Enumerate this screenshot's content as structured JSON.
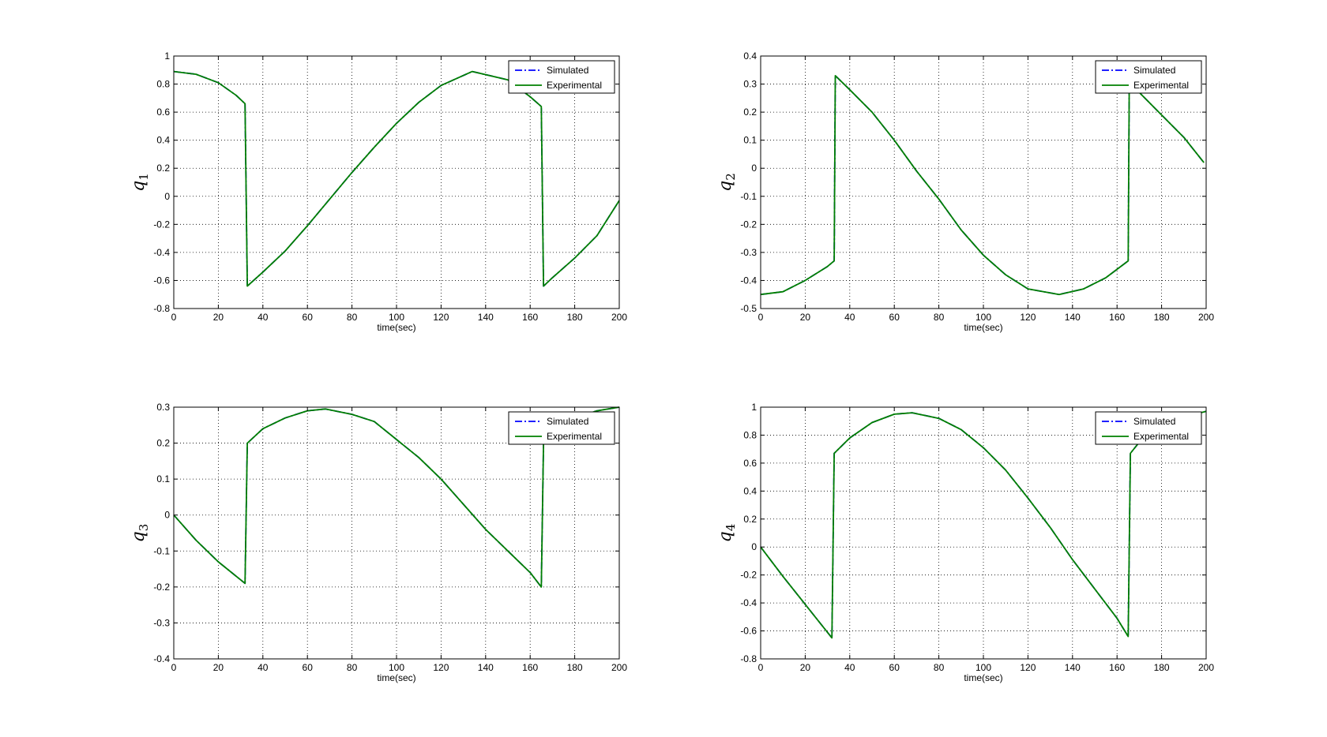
{
  "chart_data": [
    {
      "type": "line",
      "ylabel": "q",
      "ylabel_sub": "1",
      "xlabel": "time(sec)",
      "xlim": [
        0,
        200
      ],
      "ylim": [
        -0.8,
        1.0
      ],
      "xticks": [
        0,
        20,
        40,
        60,
        80,
        100,
        120,
        140,
        160,
        180,
        200
      ],
      "yticks": [
        -0.8,
        -0.6,
        -0.4,
        -0.2,
        0,
        0.2,
        0.4,
        0.6,
        0.8,
        1
      ],
      "ytick_labels": [
        "-0.8",
        "-0.6",
        "-0.4",
        "-0.2",
        "0",
        "0.2",
        "0.4",
        "0.6",
        "0.8",
        "1"
      ],
      "grid": true,
      "legend": "top-right",
      "series": [
        {
          "name": "Simulated",
          "color": "#0000ff",
          "style": "dashdot",
          "x": [
            0,
            10,
            20,
            28,
            32,
            33,
            40,
            50,
            60,
            70,
            80,
            90,
            100,
            110,
            120,
            134,
            150,
            160,
            165,
            166,
            170,
            180,
            190,
            200
          ],
          "y": [
            0.89,
            0.87,
            0.81,
            0.72,
            0.66,
            -0.64,
            -0.54,
            -0.39,
            -0.21,
            -0.02,
            0.17,
            0.35,
            0.52,
            0.67,
            0.79,
            0.89,
            0.83,
            0.71,
            0.64,
            -0.64,
            -0.58,
            -0.44,
            -0.28,
            -0.03
          ]
        },
        {
          "name": "Experimental",
          "color": "#008000",
          "style": "solid",
          "x": [
            0,
            10,
            20,
            28,
            32,
            33,
            40,
            50,
            60,
            70,
            80,
            90,
            100,
            110,
            120,
            134,
            150,
            160,
            165,
            166,
            170,
            180,
            190,
            200
          ],
          "y": [
            0.89,
            0.87,
            0.81,
            0.72,
            0.66,
            -0.64,
            -0.54,
            -0.39,
            -0.21,
            -0.02,
            0.17,
            0.35,
            0.52,
            0.67,
            0.79,
            0.89,
            0.83,
            0.71,
            0.64,
            -0.64,
            -0.58,
            -0.44,
            -0.28,
            -0.03
          ]
        }
      ]
    },
    {
      "type": "line",
      "ylabel": "q",
      "ylabel_sub": "2",
      "xlabel": "time(sec)",
      "xlim": [
        0,
        200
      ],
      "ylim": [
        -0.5,
        0.4
      ],
      "xticks": [
        0,
        20,
        40,
        60,
        80,
        100,
        120,
        140,
        160,
        180,
        200
      ],
      "yticks": [
        -0.5,
        -0.4,
        -0.3,
        -0.2,
        -0.1,
        0,
        0.1,
        0.2,
        0.3,
        0.4
      ],
      "ytick_labels": [
        "-0.5",
        "-0.4",
        "-0.3",
        "-0.2",
        "-0.1",
        "0",
        "0.1",
        "0.2",
        "0.3",
        "0.4"
      ],
      "grid": true,
      "legend": "top-right",
      "series": [
        {
          "name": "Simulated",
          "color": "#0000ff",
          "style": "dashdot",
          "x": [
            0,
            10,
            20,
            30,
            33,
            33.5,
            40,
            50,
            60,
            70,
            80,
            90,
            100,
            110,
            120,
            134,
            145,
            155,
            165,
            165.5,
            170,
            180,
            190,
            199
          ],
          "y": [
            -0.45,
            -0.44,
            -0.4,
            -0.35,
            -0.33,
            0.33,
            0.28,
            0.2,
            0.1,
            -0.01,
            -0.11,
            -0.22,
            -0.31,
            -0.38,
            -0.43,
            -0.45,
            -0.43,
            -0.39,
            -0.33,
            0.32,
            0.27,
            0.19,
            0.11,
            0.02
          ]
        },
        {
          "name": "Experimental",
          "color": "#008000",
          "style": "solid",
          "x": [
            0,
            10,
            20,
            30,
            33,
            33.5,
            40,
            50,
            60,
            70,
            80,
            90,
            100,
            110,
            120,
            134,
            145,
            155,
            165,
            165.5,
            170,
            180,
            190,
            199
          ],
          "y": [
            -0.45,
            -0.44,
            -0.4,
            -0.35,
            -0.33,
            0.33,
            0.28,
            0.2,
            0.1,
            -0.01,
            -0.11,
            -0.22,
            -0.31,
            -0.38,
            -0.43,
            -0.45,
            -0.43,
            -0.39,
            -0.33,
            0.32,
            0.27,
            0.19,
            0.11,
            0.02
          ]
        }
      ]
    },
    {
      "type": "line",
      "ylabel": "q",
      "ylabel_sub": "3",
      "xlabel": "time(sec)",
      "xlim": [
        0,
        200
      ],
      "ylim": [
        -0.4,
        0.3
      ],
      "xticks": [
        0,
        20,
        40,
        60,
        80,
        100,
        120,
        140,
        160,
        180,
        200
      ],
      "yticks": [
        -0.4,
        -0.3,
        -0.2,
        -0.1,
        0,
        0.1,
        0.2,
        0.3
      ],
      "ytick_labels": [
        "-0.4",
        "-0.3",
        "-0.2",
        "-0.1",
        "0",
        "0.1",
        "0.2",
        "0.3"
      ],
      "grid": true,
      "legend": "top-right",
      "series": [
        {
          "name": "Simulated",
          "color": "#0000ff",
          "style": "dashdot",
          "x": [
            0,
            10,
            20,
            32,
            33,
            40,
            50,
            60,
            68,
            80,
            90,
            100,
            110,
            120,
            130,
            140,
            150,
            160,
            165,
            166,
            170,
            180,
            190,
            200
          ],
          "y": [
            0,
            -0.07,
            -0.13,
            -0.19,
            0.2,
            0.24,
            0.27,
            0.29,
            0.295,
            0.28,
            0.26,
            0.21,
            0.16,
            0.1,
            0.03,
            -0.04,
            -0.1,
            -0.16,
            -0.2,
            0.2,
            0.24,
            0.27,
            0.29,
            0.3
          ]
        },
        {
          "name": "Experimental",
          "color": "#008000",
          "style": "solid",
          "x": [
            0,
            10,
            20,
            32,
            33,
            40,
            50,
            60,
            68,
            80,
            90,
            100,
            110,
            120,
            130,
            140,
            150,
            160,
            165,
            166,
            170,
            180,
            190,
            200
          ],
          "y": [
            0,
            -0.07,
            -0.13,
            -0.19,
            0.2,
            0.24,
            0.27,
            0.29,
            0.295,
            0.28,
            0.26,
            0.21,
            0.16,
            0.1,
            0.03,
            -0.04,
            -0.1,
            -0.16,
            -0.2,
            0.2,
            0.24,
            0.27,
            0.29,
            0.3
          ]
        }
      ]
    },
    {
      "type": "line",
      "ylabel": "q",
      "ylabel_sub": "4",
      "xlabel": "time(sec)",
      "xlim": [
        0,
        200
      ],
      "ylim": [
        -0.8,
        1.0
      ],
      "xticks": [
        0,
        20,
        40,
        60,
        80,
        100,
        120,
        140,
        160,
        180,
        200
      ],
      "yticks": [
        -0.8,
        -0.6,
        -0.4,
        -0.2,
        0,
        0.2,
        0.4,
        0.6,
        0.8,
        1
      ],
      "ytick_labels": [
        "-0.8",
        "-0.6",
        "-0.4",
        "-0.2",
        "0",
        "0.2",
        "0.4",
        "0.6",
        "0.8",
        "1"
      ],
      "grid": true,
      "legend": "top-right",
      "series": [
        {
          "name": "Simulated",
          "color": "#0000ff",
          "style": "dashdot",
          "x": [
            0,
            10,
            20,
            32,
            33,
            40,
            50,
            60,
            68,
            80,
            90,
            100,
            110,
            120,
            130,
            140,
            150,
            160,
            165,
            166,
            170,
            180,
            190,
            200
          ],
          "y": [
            0,
            -0.21,
            -0.41,
            -0.65,
            0.67,
            0.78,
            0.89,
            0.95,
            0.96,
            0.92,
            0.84,
            0.71,
            0.55,
            0.35,
            0.14,
            -0.09,
            -0.3,
            -0.51,
            -0.64,
            0.67,
            0.75,
            0.86,
            0.93,
            0.97
          ]
        },
        {
          "name": "Experimental",
          "color": "#008000",
          "style": "solid",
          "x": [
            0,
            10,
            20,
            32,
            33,
            40,
            50,
            60,
            68,
            80,
            90,
            100,
            110,
            120,
            130,
            140,
            150,
            160,
            165,
            166,
            170,
            180,
            190,
            200
          ],
          "y": [
            0,
            -0.21,
            -0.41,
            -0.65,
            0.67,
            0.78,
            0.89,
            0.95,
            0.96,
            0.92,
            0.84,
            0.71,
            0.55,
            0.35,
            0.14,
            -0.09,
            -0.3,
            -0.51,
            -0.64,
            0.67,
            0.75,
            0.86,
            0.93,
            0.97
          ]
        }
      ]
    }
  ]
}
